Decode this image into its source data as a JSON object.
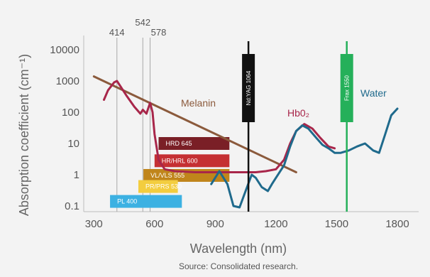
{
  "chart_data": {
    "type": "line",
    "xlabel": "Wavelength (nm)",
    "ylabel": "Absorption coefficient (cm⁻¹)",
    "source": "Source: Consolidated research.",
    "x_ticks": [
      "300",
      "600",
      "900",
      "1200",
      "1500",
      "1800"
    ],
    "y_ticks": [
      "10000",
      "1000",
      "100",
      "10",
      "1",
      "0.1"
    ],
    "xlim": [
      250,
      1800
    ],
    "ylim": [
      0.1,
      10000
    ],
    "y_scale": "log",
    "grid": false,
    "reference_lines": [
      {
        "label": "414",
        "x": 414
      },
      {
        "label": "542",
        "x": 542
      },
      {
        "label": "578",
        "x": 578
      }
    ],
    "series": [
      {
        "name": "Melanin",
        "color": "#8b5a3c",
        "x": [
          300,
          1300
        ],
        "y": [
          1400,
          1.2
        ]
      },
      {
        "name": "Hb0₂",
        "color": "#a8264a",
        "x": [
          350,
          370,
          400,
          414,
          430,
          460,
          500,
          530,
          542,
          560,
          578,
          590,
          600,
          620,
          650,
          700,
          800,
          900,
          1000,
          1100,
          1150,
          1200,
          1240,
          1270,
          1300,
          1340,
          1380,
          1420,
          1460,
          1490
        ],
        "y": [
          250,
          500,
          900,
          1000,
          700,
          350,
          150,
          90,
          120,
          90,
          200,
          100,
          20,
          3,
          1.5,
          1.3,
          1.2,
          1.2,
          1.2,
          1.2,
          1.3,
          1.5,
          3,
          10,
          25,
          42,
          30,
          15,
          8,
          7
        ]
      },
      {
        "name": "Water",
        "color": "#1f6a8c",
        "x": [
          880,
          920,
          960,
          990,
          1020,
          1050,
          1080,
          1100,
          1130,
          1160,
          1180,
          1200,
          1240,
          1270,
          1300,
          1330,
          1360,
          1400,
          1430,
          1460,
          1490,
          1520,
          1560,
          1600,
          1640,
          1680,
          1710,
          1740,
          1770,
          1800
        ],
        "y": [
          0.5,
          1.3,
          0.5,
          0.1,
          0.09,
          0.3,
          1,
          0.8,
          0.4,
          0.3,
          0.5,
          0.8,
          2,
          8,
          25,
          38,
          30,
          15,
          9,
          7,
          5,
          5,
          6,
          8,
          10,
          6,
          5,
          20,
          80,
          130
        ]
      }
    ],
    "lasers": [
      {
        "label": "Nd:YAG 1064",
        "x": 1064,
        "color": "#111111",
        "band_color": "#111111"
      },
      {
        "label": "Frax 1550",
        "x": 1550,
        "color": "#25b05a",
        "band_color": "#25b05a"
      }
    ],
    "bars": [
      {
        "label": "HRD 645",
        "x0": 620,
        "x1": 970,
        "y": 10,
        "color": "#7a1f26"
      },
      {
        "label": "HR/HRL 600",
        "x0": 600,
        "x1": 970,
        "y": 2.8,
        "color": "#c53033"
      },
      {
        "label": "VL/VLS 555",
        "x0": 545,
        "x1": 970,
        "y": 0.95,
        "color": "#c0851b"
      },
      {
        "label": "PR/PRS 530",
        "x0": 520,
        "x1": 715,
        "y": 0.42,
        "color": "#f3cd3f"
      },
      {
        "label": "PL 400",
        "x0": 380,
        "x1": 735,
        "y": 0.14,
        "color": "#3cb1e2"
      }
    ]
  }
}
